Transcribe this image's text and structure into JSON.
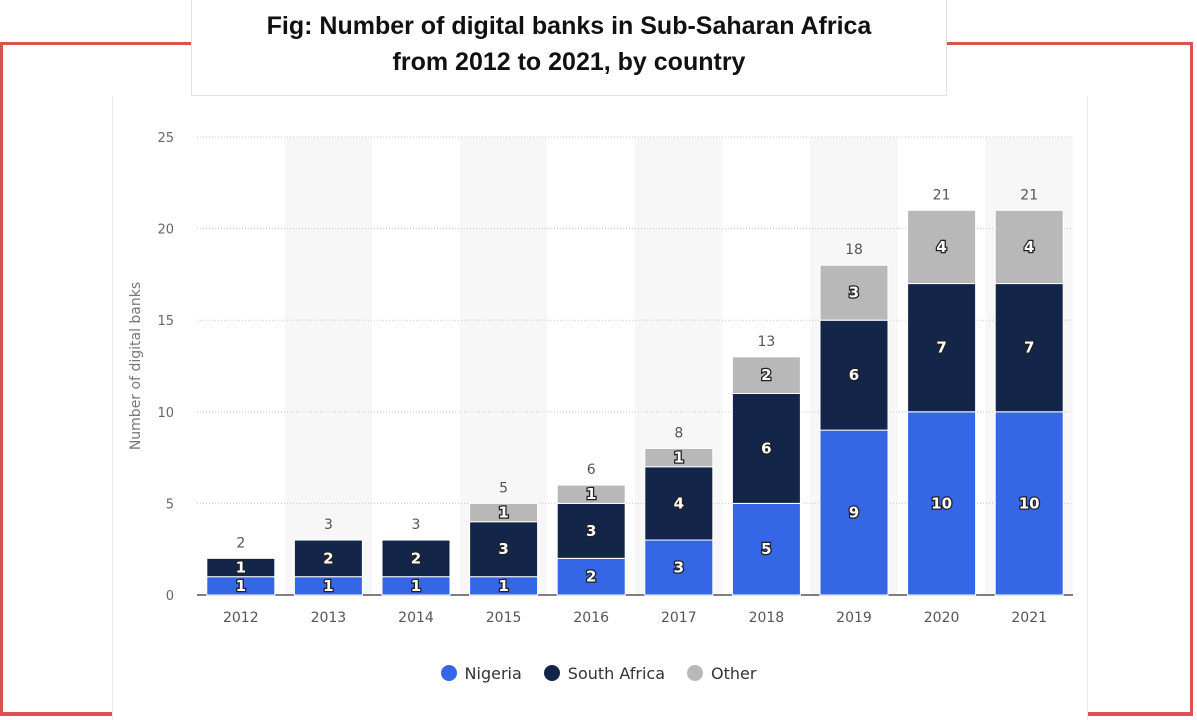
{
  "title_line1": "Fig: Number of digital banks in Sub-Saharan Africa",
  "title_line2": "from 2012 to 2021, by country",
  "chart_data": {
    "type": "bar",
    "stacked": true,
    "categories": [
      "2012",
      "2013",
      "2014",
      "2015",
      "2016",
      "2017",
      "2018",
      "2019",
      "2020",
      "2021"
    ],
    "series": [
      {
        "name": "Nigeria",
        "color": "#3466e6",
        "values": [
          1,
          1,
          1,
          1,
          2,
          3,
          5,
          9,
          10,
          10
        ]
      },
      {
        "name": "South Africa",
        "color": "#14254a",
        "values": [
          1,
          2,
          2,
          3,
          3,
          4,
          6,
          6,
          7,
          7
        ]
      },
      {
        "name": "Other",
        "color": "#b8b8b8",
        "values": [
          0,
          0,
          0,
          1,
          1,
          1,
          2,
          3,
          4,
          4
        ]
      }
    ],
    "totals": [
      2,
      3,
      3,
      5,
      6,
      8,
      13,
      18,
      21,
      21
    ],
    "ylabel": "Number of digital banks",
    "xlabel": "",
    "ylim": [
      0,
      25
    ],
    "yticks": [
      0,
      5,
      10,
      15,
      20,
      25
    ],
    "grid": true,
    "legend_position": "bottom"
  }
}
